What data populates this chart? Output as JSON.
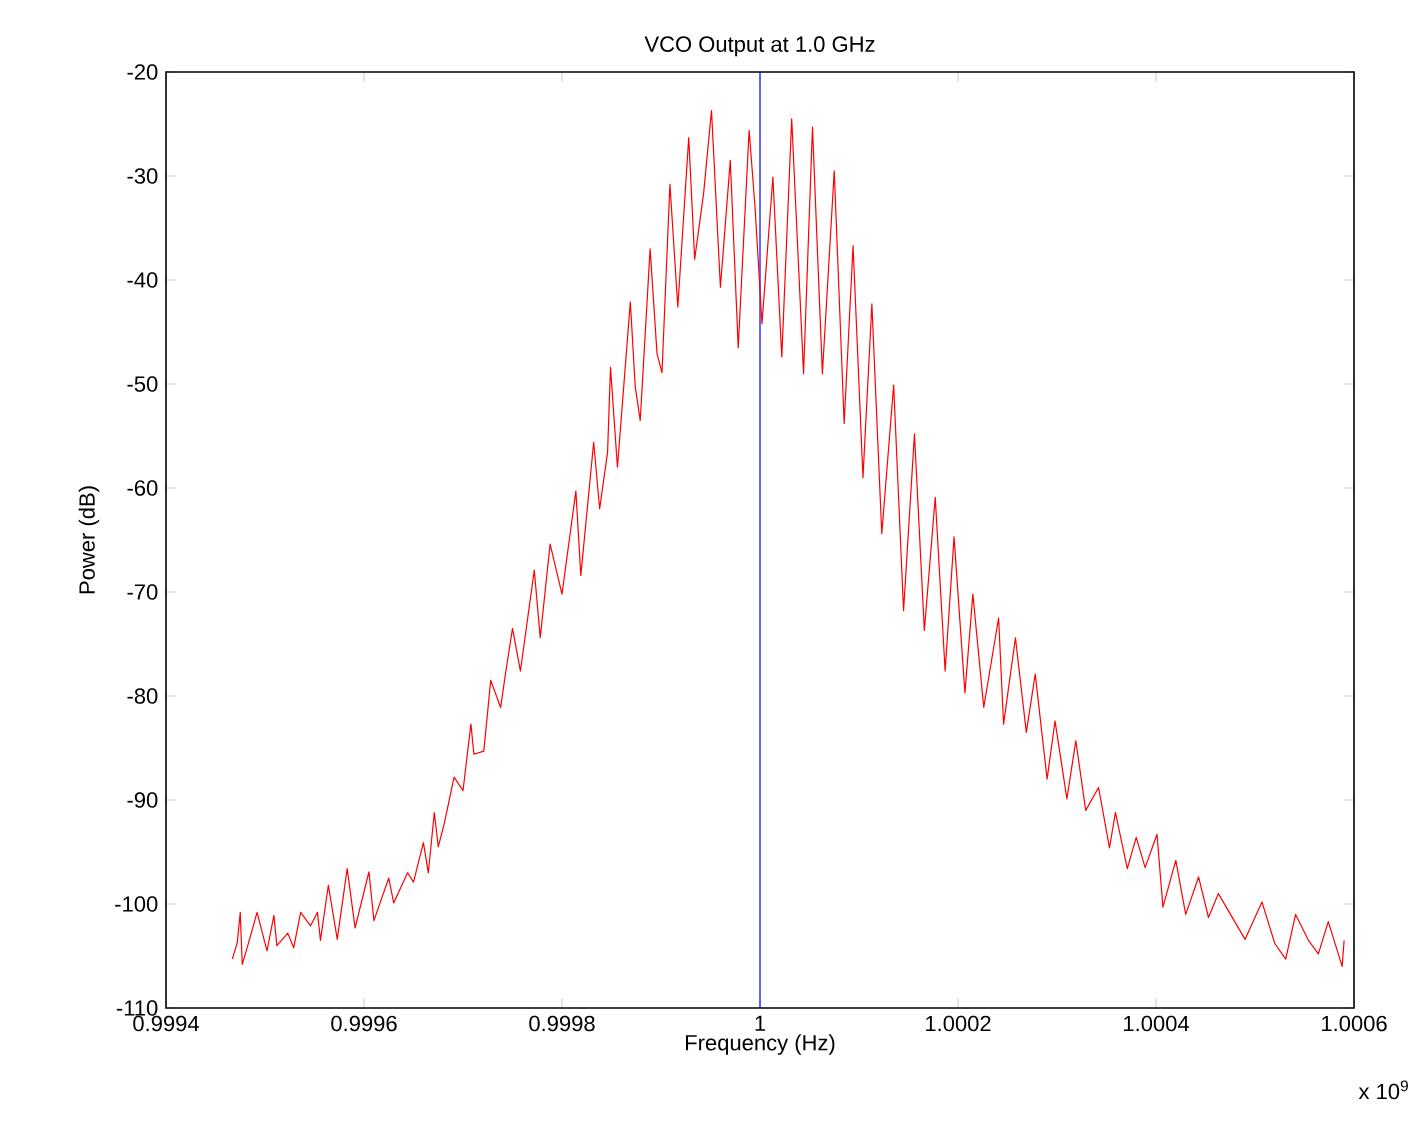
{
  "chart_data": {
    "type": "line",
    "title": "VCO Output at 1.0 GHz",
    "xlabel": "Frequency (Hz)",
    "ylabel": "Power (dB)",
    "annotations": [
      "x 10$^{9}$"
    ],
    "xlim": [
      0.9994,
      1.0006
    ],
    "ylim": [
      -110,
      -20
    ],
    "xticks": [
      0.9994,
      0.9996,
      0.9998,
      1,
      1.0002,
      1.0004,
      1.0006
    ],
    "yticks": [
      -110,
      -100,
      -90,
      -80,
      -70,
      -60,
      -50,
      -40,
      -30,
      -20
    ],
    "grid": false,
    "ref_lines": [
      {
        "axis": "x",
        "value": 1,
        "color": "#0000ff"
      }
    ],
    "series": [
      {
        "color": "#ff0000",
        "x": [
          0.999467,
          0.999472,
          0.999475,
          0.999477,
          0.999482,
          0.999492,
          0.999502,
          0.999509,
          0.999512,
          0.999523,
          0.999529,
          0.999536,
          0.999546,
          0.999553,
          0.999556,
          0.999564,
          0.999573,
          0.999583,
          0.999591,
          0.999605,
          0.99961,
          0.999625,
          0.99963,
          0.999644,
          0.99965,
          0.99966,
          0.999665,
          0.999671,
          0.999675,
          0.999681,
          0.999691,
          0.9997,
          0.999708,
          0.999711,
          0.999721,
          0.999728,
          0.999738,
          0.999743,
          0.99975,
          0.999758,
          0.999772,
          0.999778,
          0.999788,
          0.9998,
          0.999814,
          0.999819,
          0.999832,
          0.999838,
          0.999846,
          0.999849,
          0.999856,
          0.999869,
          0.999874,
          0.999879,
          0.999889,
          0.999896,
          0.999901,
          0.999909,
          0.999917,
          0.999928,
          0.999934,
          0.999943,
          0.999951,
          0.99996,
          0.99997,
          0.999978,
          0.999989,
          0.999995,
          1.000002,
          1.000013,
          1.000022,
          1.000032,
          1.000044,
          1.000053,
          1.000063,
          1.000075,
          1.000085,
          1.000094,
          1.000104,
          1.000113,
          1.000123,
          1.000135,
          1.000145,
          1.000156,
          1.000166,
          1.000177,
          1.000187,
          1.000196,
          1.000207,
          1.000215,
          1.000226,
          1.000241,
          1.000246,
          1.000258,
          1.000269,
          1.000278,
          1.00029,
          1.000298,
          1.00031,
          1.000319,
          1.000329,
          1.000342,
          1.000353,
          1.000359,
          1.000371,
          1.00038,
          1.000389,
          1.000401,
          1.000407,
          1.00042,
          1.00043,
          1.000443,
          1.000453,
          1.000463,
          1.00049,
          1.000507,
          1.00052,
          1.000531,
          1.000541,
          1.000554,
          1.000564,
          1.000574,
          1.000588,
          1.00059
        ],
        "values": [
          -105.3,
          -103.7,
          -100.8,
          -105.8,
          -104.2,
          -100.8,
          -104.5,
          -101.1,
          -104.0,
          -102.8,
          -104.2,
          -100.8,
          -102.1,
          -100.8,
          -103.5,
          -98.2,
          -103.4,
          -96.6,
          -102.3,
          -96.9,
          -101.6,
          -97.5,
          -99.9,
          -97.0,
          -97.9,
          -94.1,
          -97.0,
          -91.2,
          -94.5,
          -92.3,
          -87.8,
          -89.1,
          -82.7,
          -85.6,
          -85.3,
          -78.5,
          -81.1,
          -77.8,
          -73.5,
          -77.6,
          -67.9,
          -74.4,
          -65.4,
          -70.2,
          -60.3,
          -68.4,
          -55.6,
          -62.0,
          -56.6,
          -48.4,
          -58.0,
          -42.1,
          -50.3,
          -53.5,
          -37.0,
          -47.1,
          -48.9,
          -30.8,
          -42.6,
          -26.3,
          -38.0,
          -31.7,
          -23.7,
          -40.7,
          -28.5,
          -46.5,
          -25.6,
          -33.0,
          -44.2,
          -30.1,
          -47.4,
          -24.5,
          -49.0,
          -25.3,
          -49.0,
          -29.5,
          -53.8,
          -36.7,
          -59.0,
          -42.3,
          -64.4,
          -50.1,
          -71.8,
          -54.8,
          -73.7,
          -60.9,
          -77.6,
          -64.7,
          -79.7,
          -70.2,
          -81.1,
          -72.5,
          -82.7,
          -74.4,
          -83.5,
          -77.9,
          -88.0,
          -82.4,
          -89.9,
          -84.3,
          -91.0,
          -88.8,
          -94.6,
          -91.2,
          -96.6,
          -93.6,
          -96.5,
          -93.3,
          -100.3,
          -95.8,
          -101.0,
          -97.4,
          -101.3,
          -99.0,
          -103.4,
          -99.8,
          -103.8,
          -105.3,
          -101.0,
          -103.5,
          -104.8,
          -101.7,
          -106.0,
          -103.5
        ]
      }
    ]
  }
}
